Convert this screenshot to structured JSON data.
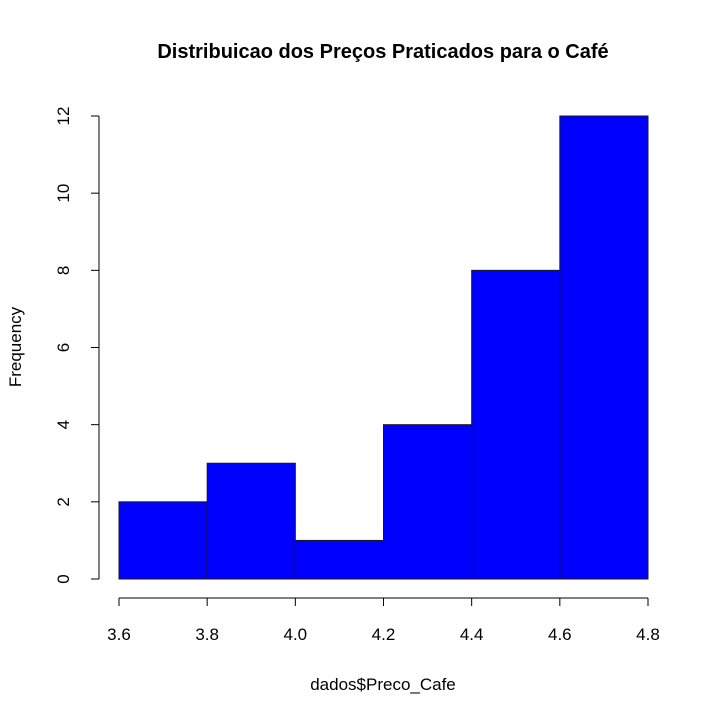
{
  "chart_data": {
    "type": "bar",
    "subtype": "histogram",
    "title": "Distribuicao dos Preços Praticados para o Café",
    "xlabel": "dados$Preco_Cafe",
    "ylabel": "Frequency",
    "bins": [
      {
        "start": 3.6,
        "end": 3.8,
        "count": 2
      },
      {
        "start": 3.8,
        "end": 4.0,
        "count": 3
      },
      {
        "start": 4.0,
        "end": 4.2,
        "count": 1
      },
      {
        "start": 4.2,
        "end": 4.4,
        "count": 4
      },
      {
        "start": 4.4,
        "end": 4.6,
        "count": 8
      },
      {
        "start": 4.6,
        "end": 4.8,
        "count": 12
      }
    ],
    "x_ticks": [
      "3.6",
      "3.8",
      "4.0",
      "4.2",
      "4.4",
      "4.6",
      "4.8"
    ],
    "y_ticks": [
      "0",
      "2",
      "4",
      "6",
      "8",
      "10",
      "12"
    ],
    "xlim": [
      3.6,
      4.8
    ],
    "ylim": [
      0,
      12
    ],
    "bar_color": "#0000ff",
    "grid": false,
    "legend": "none"
  }
}
